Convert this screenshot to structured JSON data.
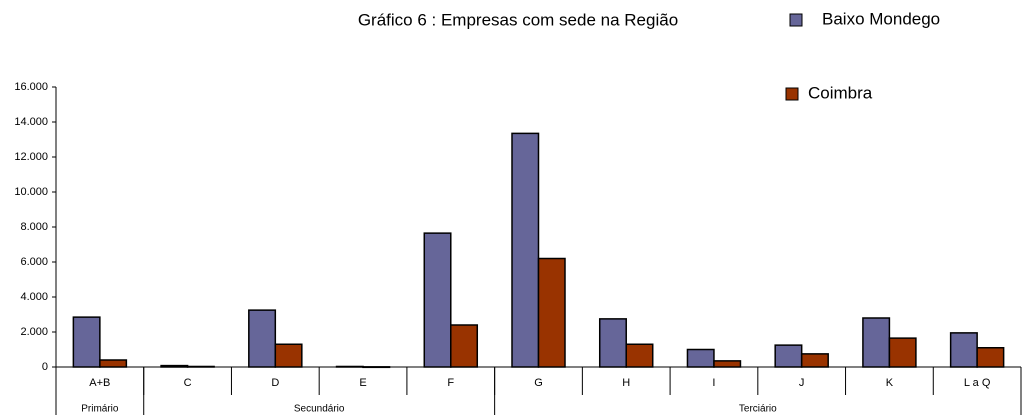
{
  "chart_data": {
    "type": "bar",
    "title": "Gráfico 6 :  Empresas com sede na Região",
    "categories": [
      "A+B",
      "C",
      "D",
      "E",
      "F",
      "G",
      "H",
      "I",
      "J",
      "K",
      "L a Q"
    ],
    "groups": [
      {
        "label": "Primário",
        "span": 1
      },
      {
        "label": "Secundário",
        "span": 4
      },
      {
        "label": "Terciário",
        "span": 6
      }
    ],
    "series": [
      {
        "name": "Baixo Mondego",
        "color": "#666699",
        "values": [
          2850,
          80,
          3250,
          30,
          7650,
          13350,
          2750,
          1000,
          1250,
          2800,
          1950
        ]
      },
      {
        "name": "Coimbra",
        "color": "#993300",
        "values": [
          400,
          30,
          1300,
          10,
          2400,
          6200,
          1300,
          350,
          750,
          1650,
          1100
        ]
      }
    ],
    "ylim": [
      0,
      16000
    ],
    "yticks": [
      0,
      {
        "value": 2000,
        "label": "2.000"
      },
      {
        "value": 4000,
        "label": "4.000"
      },
      {
        "value": 6000,
        "label": "6.000"
      },
      {
        "value": 8000,
        "label": "8.000"
      },
      {
        "value": 10000,
        "label": "10.000"
      },
      {
        "value": 12000,
        "label": "12.000"
      },
      {
        "value": 14000,
        "label": "14.000"
      },
      {
        "value": 16000,
        "label": "16.000"
      }
    ],
    "grid": false
  }
}
